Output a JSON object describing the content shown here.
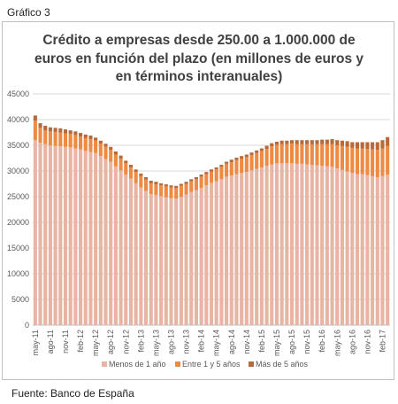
{
  "header_label": "Gráfico 3",
  "source_label": "Fuente: Banco de España",
  "chart_data": {
    "type": "bar",
    "stacked": true,
    "title": "Crédito a empresas desde 250.00 a 1.000.000 de euros en función del plazo (en millones de euros y en términos interanuales)",
    "title_lines": [
      "Crédito a empresas desde 250.00 a 1.000.000 de",
      "euros en función del plazo (en millones de euros y",
      "en términos interanuales)"
    ],
    "ylim": [
      0,
      45000
    ],
    "y_ticks": [
      "0",
      "5000",
      "10000",
      "15000",
      "20000",
      "25000",
      "30000",
      "35000",
      "40000",
      "45000"
    ],
    "gridlines": true,
    "legend_position": "bottom",
    "x_tick_labels": [
      "may-11",
      "ago-11",
      "nov-11",
      "feb-12",
      "may-12",
      "ago-12",
      "nov-12",
      "feb-13",
      "may-13",
      "ago-13",
      "nov-13",
      "feb-14",
      "may-14",
      "ago-14",
      "nov-14",
      "feb-15",
      "may-15",
      "ago-15",
      "nov-15",
      "feb-16",
      "may-16",
      "ago-16",
      "nov-16",
      "feb-17"
    ],
    "categories": [
      "may-11",
      "jun-11",
      "jul-11",
      "ago-11",
      "sep-11",
      "oct-11",
      "nov-11",
      "dic-11",
      "ene-12",
      "feb-12",
      "mar-12",
      "abr-12",
      "may-12",
      "jun-12",
      "jul-12",
      "ago-12",
      "sep-12",
      "oct-12",
      "nov-12",
      "dic-12",
      "ene-13",
      "feb-13",
      "mar-13",
      "abr-13",
      "may-13",
      "jun-13",
      "jul-13",
      "ago-13",
      "sep-13",
      "oct-13",
      "nov-13",
      "dic-13",
      "ene-14",
      "feb-14",
      "mar-14",
      "abr-14",
      "may-14",
      "jun-14",
      "jul-14",
      "ago-14",
      "sep-14",
      "oct-14",
      "nov-14",
      "dic-14",
      "ene-15",
      "feb-15",
      "mar-15",
      "abr-15",
      "may-15",
      "jun-15",
      "jul-15",
      "ago-15",
      "sep-15",
      "oct-15",
      "nov-15",
      "dic-15",
      "ene-16",
      "feb-16",
      "mar-16",
      "abr-16",
      "may-16",
      "jun-16",
      "jul-16",
      "ago-16",
      "sep-16",
      "oct-16",
      "nov-16",
      "dic-16",
      "ene-17",
      "feb-17",
      "mar-17"
    ],
    "series": [
      {
        "name": "Menos de 1 año",
        "color": "#e8b4a4",
        "values": [
          36000,
          35500,
          35200,
          35000,
          34900,
          34800,
          34700,
          34600,
          34400,
          34200,
          33900,
          33700,
          33500,
          32900,
          32300,
          31800,
          30900,
          30100,
          29300,
          28500,
          27600,
          26800,
          26100,
          25500,
          25300,
          25100,
          24900,
          24700,
          24600,
          25000,
          25400,
          25900,
          26300,
          26700,
          27200,
          27700,
          28000,
          28400,
          28900,
          29100,
          29400,
          29600,
          29800,
          30100,
          30400,
          30700,
          31000,
          31300,
          31500,
          31500,
          31500,
          31500,
          31400,
          31400,
          31300,
          31200,
          31100,
          31000,
          30900,
          30800,
          30500,
          30200,
          29900,
          29600,
          29400,
          29400,
          29200,
          29000,
          28800,
          29000,
          29300
        ]
      },
      {
        "name": "Entre 1 y 5 años",
        "color": "#ed8a43",
        "values": [
          3800,
          2900,
          2700,
          2700,
          2700,
          2700,
          2600,
          2600,
          2600,
          2500,
          2500,
          2500,
          2400,
          2400,
          2400,
          2300,
          2300,
          2300,
          2200,
          2200,
          2200,
          2200,
          2200,
          2100,
          2100,
          2100,
          2100,
          2100,
          2100,
          2100,
          2100,
          2100,
          2100,
          2200,
          2200,
          2200,
          2300,
          2400,
          2500,
          2600,
          2700,
          2800,
          2900,
          3000,
          3100,
          3200,
          3300,
          3500,
          3600,
          3700,
          3700,
          3800,
          3800,
          3800,
          3900,
          4000,
          4100,
          4200,
          4300,
          4400,
          4500,
          4700,
          4800,
          4900,
          5000,
          5000,
          5100,
          5200,
          5300,
          5400,
          5600
        ]
      },
      {
        "name": "Más de 5 años",
        "color": "#b66a3a",
        "values": [
          1000,
          900,
          900,
          800,
          800,
          800,
          800,
          700,
          700,
          700,
          700,
          700,
          600,
          600,
          600,
          600,
          600,
          600,
          500,
          500,
          500,
          500,
          500,
          500,
          500,
          400,
          400,
          400,
          400,
          400,
          400,
          400,
          400,
          400,
          400,
          400,
          400,
          400,
          400,
          500,
          500,
          500,
          500,
          500,
          500,
          500,
          600,
          600,
          600,
          700,
          700,
          700,
          800,
          800,
          800,
          800,
          800,
          900,
          900,
          1000,
          1000,
          1000,
          1100,
          1100,
          1200,
          1200,
          1300,
          1400,
          1500,
          1600,
          1700
        ]
      }
    ]
  }
}
